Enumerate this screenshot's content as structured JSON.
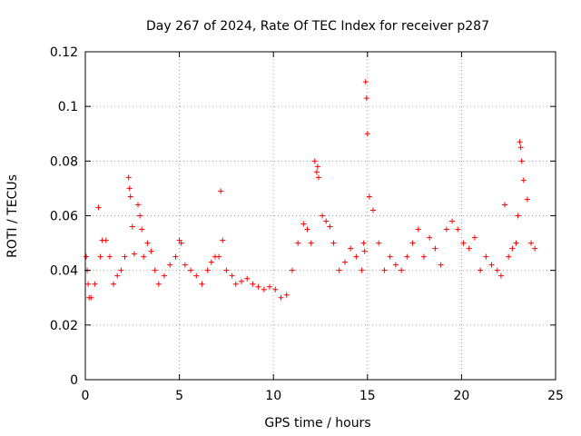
{
  "chart_data": {
    "type": "scatter",
    "title": "Day 267 of 2024, Rate Of TEC Index for receiver p287",
    "xlabel": "GPS time / hours",
    "ylabel": "ROTI / TECUs",
    "xlim": [
      0,
      25
    ],
    "ylim": [
      0,
      0.12
    ],
    "xticks": [
      0,
      5,
      10,
      15,
      20,
      25
    ],
    "xtick_labels": [
      "0",
      "5",
      "10",
      "15",
      "20",
      "25"
    ],
    "yticks": [
      0,
      0.02,
      0.04,
      0.06,
      0.08,
      0.1,
      0.12
    ],
    "ytick_labels": [
      "0",
      "0.02",
      "0.04",
      "0.06",
      "0.08",
      "0.1",
      "0.12"
    ],
    "grid": true,
    "marker": "+",
    "color": "#ff0000",
    "series": [
      {
        "name": "ROTI",
        "x": [
          0.05,
          0.1,
          0.15,
          0.2,
          0.3,
          0.5,
          0.7,
          0.8,
          0.9,
          1.1,
          1.3,
          1.5,
          1.7,
          1.9,
          2.1,
          2.3,
          2.35,
          2.4,
          2.5,
          2.6,
          2.8,
          2.9,
          3.0,
          3.1,
          3.3,
          3.5,
          3.7,
          3.9,
          4.2,
          4.5,
          4.8,
          5.0,
          5.1,
          5.3,
          5.6,
          5.9,
          6.2,
          6.5,
          6.7,
          6.9,
          7.1,
          7.2,
          7.3,
          7.5,
          7.8,
          8.0,
          8.3,
          8.6,
          8.9,
          9.2,
          9.5,
          9.8,
          10.1,
          10.4,
          10.7,
          11.0,
          11.3,
          11.6,
          11.8,
          12.0,
          12.2,
          12.3,
          12.35,
          12.4,
          12.6,
          12.8,
          13.0,
          13.2,
          13.5,
          13.8,
          14.1,
          14.4,
          14.7,
          14.8,
          14.85,
          14.9,
          14.95,
          15.0,
          15.1,
          15.3,
          15.6,
          15.9,
          16.2,
          16.5,
          16.8,
          17.1,
          17.4,
          17.7,
          18.0,
          18.3,
          18.6,
          18.9,
          19.2,
          19.5,
          19.8,
          20.1,
          20.4,
          20.7,
          21.0,
          21.3,
          21.6,
          21.9,
          22.1,
          22.3,
          22.5,
          22.7,
          22.9,
          23.0,
          23.1,
          23.15,
          23.2,
          23.3,
          23.5,
          23.7,
          23.9
        ],
        "y": [
          0.045,
          0.04,
          0.035,
          0.03,
          0.03,
          0.035,
          0.063,
          0.045,
          0.051,
          0.051,
          0.045,
          0.035,
          0.038,
          0.04,
          0.045,
          0.074,
          0.07,
          0.067,
          0.056,
          0.046,
          0.064,
          0.06,
          0.055,
          0.045,
          0.05,
          0.047,
          0.04,
          0.035,
          0.038,
          0.042,
          0.045,
          0.051,
          0.05,
          0.042,
          0.04,
          0.038,
          0.035,
          0.04,
          0.043,
          0.045,
          0.045,
          0.069,
          0.051,
          0.04,
          0.038,
          0.035,
          0.036,
          0.037,
          0.035,
          0.034,
          0.033,
          0.034,
          0.033,
          0.03,
          0.031,
          0.04,
          0.05,
          0.057,
          0.055,
          0.05,
          0.08,
          0.076,
          0.078,
          0.074,
          0.06,
          0.058,
          0.056,
          0.05,
          0.04,
          0.043,
          0.048,
          0.045,
          0.04,
          0.05,
          0.047,
          0.109,
          0.103,
          0.09,
          0.067,
          0.062,
          0.05,
          0.04,
          0.045,
          0.042,
          0.04,
          0.045,
          0.05,
          0.055,
          0.045,
          0.052,
          0.048,
          0.042,
          0.055,
          0.058,
          0.055,
          0.05,
          0.048,
          0.052,
          0.04,
          0.045,
          0.042,
          0.04,
          0.038,
          0.064,
          0.045,
          0.048,
          0.05,
          0.06,
          0.087,
          0.085,
          0.08,
          0.073,
          0.066,
          0.05,
          0.048
        ]
      }
    ]
  }
}
